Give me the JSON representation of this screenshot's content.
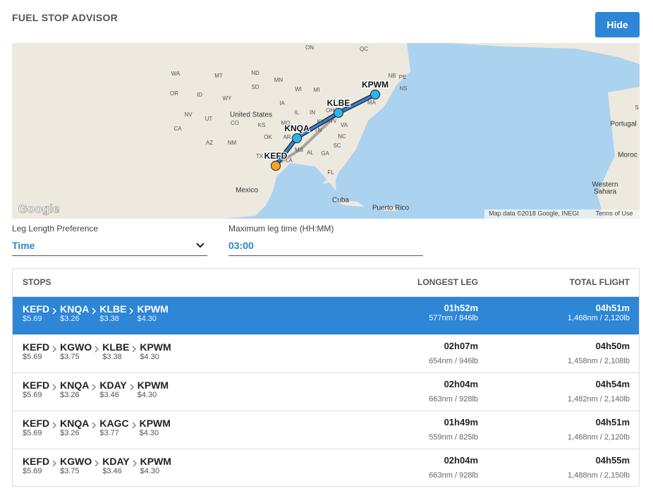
{
  "header": {
    "title": "FUEL STOP ADVISOR",
    "button": "Hide"
  },
  "map": {
    "logo": "Google",
    "attribution": "Map data ©2018 Google, INEGI",
    "terms": "Terms of Use",
    "labels": [
      "ON",
      "QC",
      "WA",
      "MT",
      "ND",
      "MN",
      "NB",
      "PE",
      "NS",
      "OR",
      "ID",
      "WY",
      "SD",
      "WI",
      "MI",
      "IA",
      "NV",
      "UT",
      "United States",
      "CO",
      "KS",
      "MO",
      "IL",
      "IN",
      "OH",
      "PA",
      "MA",
      "CA",
      "AZ",
      "NM",
      "OK",
      "AR",
      "TN",
      "KY",
      "WV",
      "VA",
      "NC",
      "SC",
      "GA",
      "AL",
      "MS",
      "TX",
      "LA",
      "FL",
      "Mexico",
      "Cuba",
      "Puerto Rico",
      "Portugal",
      "S",
      "Moroc",
      "Western",
      "Sahara"
    ],
    "waypoints": [
      "KPWM",
      "KLBE",
      "KNQA",
      "KEFD"
    ]
  },
  "form": {
    "leg_pref_label": "Leg Length Preference",
    "leg_pref_value": "Time",
    "max_leg_label": "Maximum leg time (HH:MM)",
    "max_leg_value": "03:00"
  },
  "table": {
    "headers": [
      "STOPS",
      "LONGEST LEG",
      "TOTAL FLIGHT"
    ],
    "rows": [
      {
        "stops": [
          {
            "code": "KEFD",
            "price": "$5.69"
          },
          {
            "code": "KNQA",
            "price": "$3.26"
          },
          {
            "code": "KLBE",
            "price": "$3.38"
          },
          {
            "code": "KPWM",
            "price": "$4.30"
          }
        ],
        "longest": "01h52m",
        "longest_detail": "577nm / 846lb",
        "total": "04h51m",
        "total_detail": "1,468nm / 2,120lb"
      },
      {
        "stops": [
          {
            "code": "KEFD",
            "price": "$5.69"
          },
          {
            "code": "KGWO",
            "price": "$3.75"
          },
          {
            "code": "KLBE",
            "price": "$3.38"
          },
          {
            "code": "KPWM",
            "price": "$4.30"
          }
        ],
        "longest": "02h07m",
        "longest_detail": "654nm / 946lb",
        "total": "04h50m",
        "total_detail": "1,458nm / 2,108lb"
      },
      {
        "stops": [
          {
            "code": "KEFD",
            "price": "$5.69"
          },
          {
            "code": "KNQA",
            "price": "$3.26"
          },
          {
            "code": "KDAY",
            "price": "$3.46"
          },
          {
            "code": "KPWM",
            "price": "$4.30"
          }
        ],
        "longest": "02h04m",
        "longest_detail": "663nm / 928lb",
        "total": "04h54m",
        "total_detail": "1,482nm / 2,140lb"
      },
      {
        "stops": [
          {
            "code": "KEFD",
            "price": "$5.69"
          },
          {
            "code": "KNQA",
            "price": "$3.26"
          },
          {
            "code": "KAGC",
            "price": "$3.77"
          },
          {
            "code": "KPWM",
            "price": "$4.30"
          }
        ],
        "longest": "01h49m",
        "longest_detail": "559nm / 825lb",
        "total": "04h51m",
        "total_detail": "1,468nm / 2,120lb"
      },
      {
        "stops": [
          {
            "code": "KEFD",
            "price": "$5.69"
          },
          {
            "code": "KGWO",
            "price": "$3.75"
          },
          {
            "code": "KDAY",
            "price": "$3.46"
          },
          {
            "code": "KPWM",
            "price": "$4.30"
          }
        ],
        "longest": "02h04m",
        "longest_detail": "663nm / 928lb",
        "total": "04h55m",
        "total_detail": "1,488nm / 2,150lb"
      }
    ]
  }
}
